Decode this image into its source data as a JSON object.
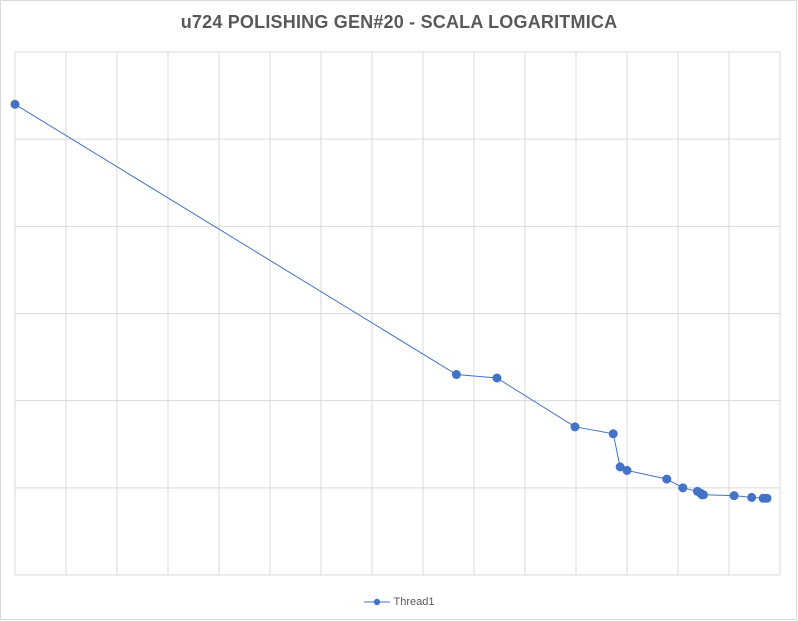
{
  "chart_data": {
    "type": "line",
    "title": "u724 POLISHING GEN#20 - SCALA LOGARITMICA",
    "xlabel": "",
    "ylabel": "",
    "grid": true,
    "legend_position": "bottom",
    "xlim": [
      0,
      1000
    ],
    "ylim": [
      0,
      3
    ],
    "series": [
      {
        "name": "Thread1",
        "color": "#4472c4",
        "x": [
          0,
          577,
          630,
          732,
          782,
          791,
          800,
          852,
          873,
          892,
          896,
          898,
          900,
          940,
          963,
          978,
          983
        ],
        "y": [
          2.7,
          1.15,
          1.13,
          0.85,
          0.81,
          0.62,
          0.6,
          0.55,
          0.5,
          0.48,
          0.47,
          0.46,
          0.46,
          0.455,
          0.445,
          0.44,
          0.44
        ]
      }
    ]
  }
}
